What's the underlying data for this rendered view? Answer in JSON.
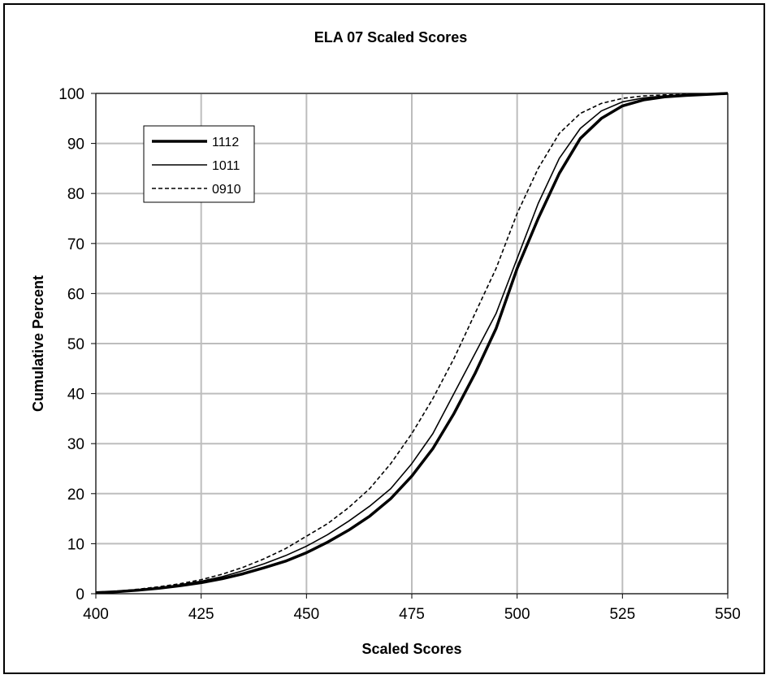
{
  "chart_data": {
    "type": "line",
    "title": "ELA 07 Scaled Scores",
    "xlabel": "Scaled Scores",
    "ylabel": "Cumulative Percent",
    "xlim": [
      400,
      550
    ],
    "ylim": [
      0,
      100
    ],
    "xticks": [
      400,
      425,
      450,
      475,
      500,
      525,
      550
    ],
    "yticks": [
      0,
      10,
      20,
      30,
      40,
      50,
      60,
      70,
      80,
      90,
      100
    ],
    "grid": true,
    "legend_position": "top-left",
    "series": [
      {
        "name": "1112",
        "style": "thick-solid",
        "x": [
          400,
          405,
          410,
          415,
          420,
          425,
          430,
          435,
          440,
          445,
          450,
          455,
          460,
          465,
          470,
          475,
          480,
          485,
          490,
          495,
          500,
          505,
          510,
          515,
          520,
          525,
          530,
          535,
          540,
          545,
          550
        ],
        "y": [
          0.2,
          0.4,
          0.7,
          1.1,
          1.6,
          2.2,
          3.0,
          4.0,
          5.2,
          6.5,
          8.2,
          10.3,
          12.7,
          15.5,
          19.0,
          23.5,
          29.0,
          36.0,
          44.0,
          53.0,
          65.0,
          75.0,
          84.0,
          91.0,
          95.0,
          97.5,
          98.7,
          99.3,
          99.6,
          99.8,
          100
        ]
      },
      {
        "name": "1011",
        "style": "thin-solid",
        "x": [
          400,
          405,
          410,
          415,
          420,
          425,
          430,
          435,
          440,
          445,
          450,
          455,
          460,
          465,
          470,
          475,
          480,
          485,
          490,
          495,
          500,
          505,
          510,
          515,
          520,
          525,
          530,
          535,
          540,
          545,
          550
        ],
        "y": [
          0.2,
          0.4,
          0.8,
          1.2,
          1.8,
          2.5,
          3.4,
          4.6,
          6.0,
          7.6,
          9.5,
          11.8,
          14.5,
          17.5,
          21.0,
          26.0,
          32.0,
          40.0,
          48.0,
          56.0,
          67.0,
          78.0,
          87.0,
          93.0,
          96.5,
          98.3,
          99.1,
          99.5,
          99.7,
          99.9,
          100
        ]
      },
      {
        "name": "0910",
        "style": "dashed",
        "x": [
          400,
          405,
          410,
          415,
          420,
          425,
          430,
          435,
          440,
          445,
          450,
          455,
          460,
          465,
          470,
          475,
          480,
          485,
          490,
          495,
          500,
          505,
          510,
          515,
          520,
          525,
          530,
          535,
          540,
          545,
          550
        ],
        "y": [
          0.2,
          0.5,
          0.9,
          1.4,
          2.0,
          2.8,
          3.9,
          5.3,
          7.0,
          9.0,
          11.5,
          14.0,
          17.2,
          21.0,
          26.0,
          32.0,
          39.0,
          47.0,
          56.0,
          65.0,
          76.0,
          85.0,
          92.0,
          96.0,
          98.0,
          99.0,
          99.5,
          99.7,
          99.8,
          99.9,
          100
        ]
      }
    ]
  }
}
